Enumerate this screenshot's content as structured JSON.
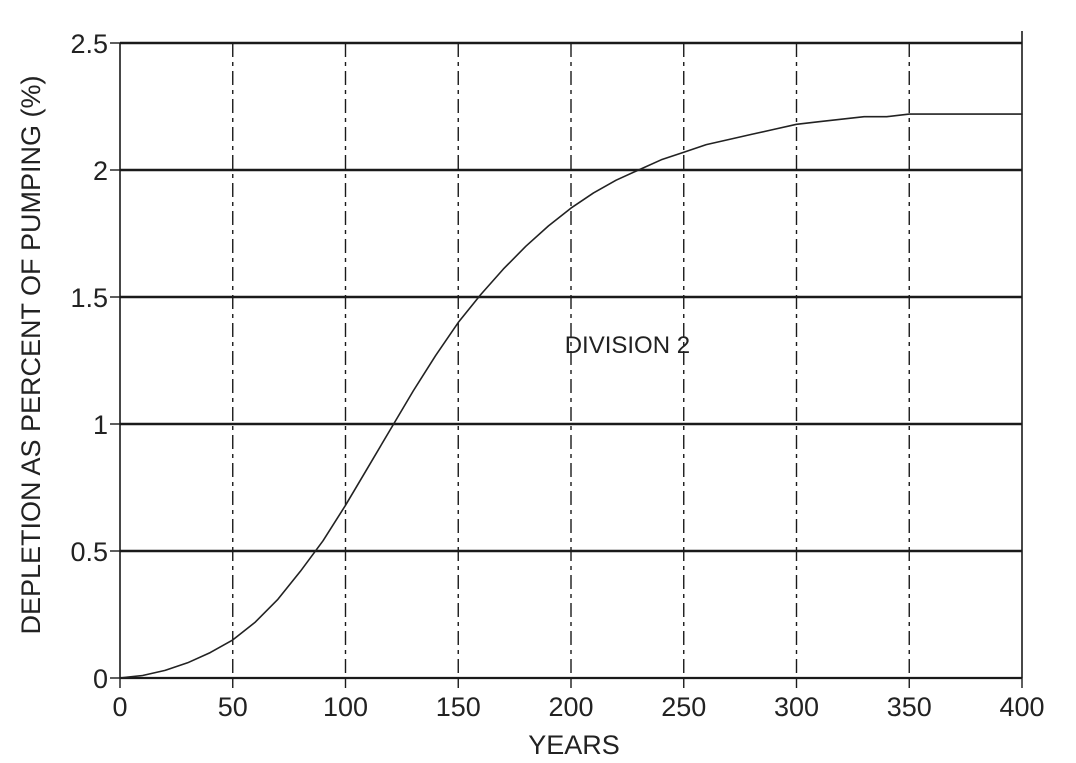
{
  "chart_data": {
    "type": "line",
    "title": "",
    "xlabel": "YEARS",
    "ylabel": "DEPLETION AS PERCENT OF PUMPING (%)",
    "xlim": [
      0,
      400
    ],
    "ylim": [
      0,
      2.5
    ],
    "x_ticks": [
      0,
      50,
      100,
      150,
      200,
      250,
      300,
      350,
      400
    ],
    "x_tick_labels": [
      "0",
      "50",
      "100",
      "150",
      "200",
      "250",
      "300",
      "350",
      "400"
    ],
    "y_ticks": [
      0,
      0.5,
      1,
      1.5,
      2,
      2.5
    ],
    "y_tick_labels": [
      "0",
      "0.5",
      "1",
      "1.5",
      "2",
      "2.5"
    ],
    "grid": true,
    "series": [
      {
        "name": "",
        "x": [
          0,
          10,
          20,
          30,
          40,
          50,
          60,
          70,
          80,
          90,
          100,
          110,
          120,
          130,
          140,
          150,
          160,
          170,
          180,
          190,
          200,
          210,
          220,
          230,
          240,
          250,
          260,
          270,
          280,
          290,
          300,
          310,
          320,
          330,
          340,
          350,
          360,
          370,
          380,
          390,
          400
        ],
        "y": [
          0.0,
          0.01,
          0.03,
          0.06,
          0.1,
          0.15,
          0.22,
          0.31,
          0.42,
          0.54,
          0.68,
          0.83,
          0.98,
          1.13,
          1.27,
          1.4,
          1.51,
          1.61,
          1.7,
          1.78,
          1.85,
          1.91,
          1.96,
          2.0,
          2.04,
          2.07,
          2.1,
          2.12,
          2.14,
          2.16,
          2.18,
          2.19,
          2.2,
          2.21,
          2.21,
          2.22,
          2.22,
          2.22,
          2.22,
          2.22,
          2.22
        ]
      }
    ],
    "annotations": [
      {
        "text": "DIVISION 2",
        "x": 225,
        "y": 1.28
      }
    ],
    "colors": {
      "line": "#222222",
      "grid": "#1a1a1a",
      "background": "#ffffff"
    }
  }
}
